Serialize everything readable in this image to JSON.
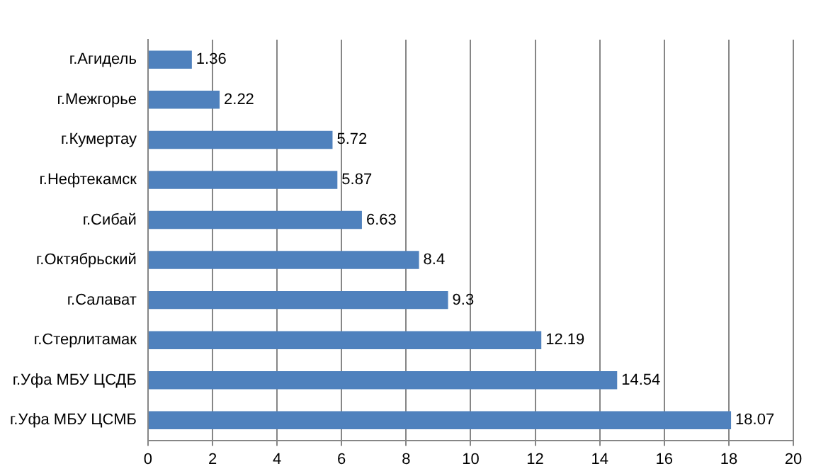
{
  "chart_data": {
    "type": "bar",
    "orientation": "horizontal",
    "categories": [
      "г.Агидель",
      "г.Межгорье",
      "г.Кумертау",
      "г.Нефтекамск",
      "г.Сибай",
      "г.Октябрьский",
      "г.Салават",
      "г.Стерлитамак",
      "г.Уфа МБУ ЦСДБ",
      "г.Уфа МБУ ЦСМБ"
    ],
    "values": [
      1.36,
      2.22,
      5.72,
      5.87,
      6.63,
      8.4,
      9.3,
      12.19,
      14.54,
      18.07
    ],
    "color": "#4f81bd",
    "xlim": [
      0,
      20
    ],
    "xticks": [
      0,
      2,
      4,
      6,
      8,
      10,
      12,
      14,
      16,
      18,
      20
    ],
    "grid": "x",
    "data_labels": true
  }
}
